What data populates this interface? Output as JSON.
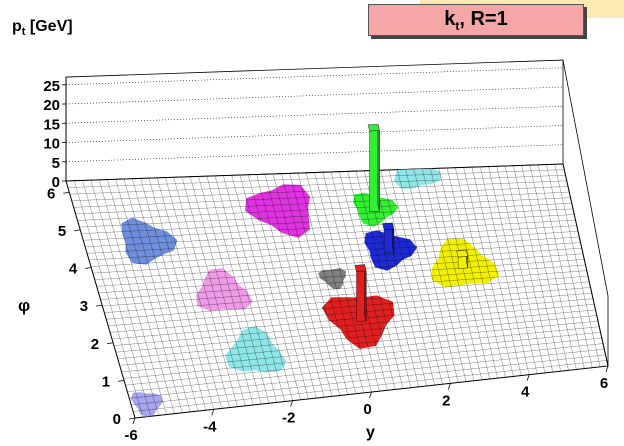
{
  "chart_data": {
    "type": "lego_3d",
    "title": "k_t, R=1",
    "title_main": "k",
    "title_sub": "t",
    "title_rest": ", R=1",
    "zlabel_main": "p",
    "zlabel_sub": "t",
    "zlabel_rest": " [GeV]",
    "xlabel": "y",
    "ylabel": "φ",
    "x_ticks": [
      "-6",
      "-4",
      "-2",
      "0",
      "2",
      "4",
      "6"
    ],
    "y_ticks": [
      "0",
      "1",
      "2",
      "3",
      "4",
      "5",
      "6"
    ],
    "z_ticks": [
      "0",
      "5",
      "10",
      "15",
      "20",
      "25"
    ],
    "xlim": [
      -6,
      6
    ],
    "ylim": [
      0,
      6.3
    ],
    "zlim": [
      0,
      27
    ],
    "grid": "on",
    "jets": [
      {
        "color": "#6f8fdc",
        "y": -4.5,
        "phi": 4.6,
        "r": 0.7,
        "pt": 0
      },
      {
        "color": "#ef9be8",
        "y": -3.0,
        "phi": 3.1,
        "r": 0.7,
        "pt": 0
      },
      {
        "color": "#8fe6e6",
        "y": -2.6,
        "phi": 1.4,
        "r": 0.75,
        "pt": 0
      },
      {
        "color": "#a7a6ec",
        "y": -5.6,
        "phi": 0.35,
        "r": 0.4,
        "pt": 0
      },
      {
        "color": "#e033e0",
        "y": -1.0,
        "phi": 5.3,
        "r": 0.85,
        "pt": 0
      },
      {
        "color": "#33ee33",
        "y": 1.2,
        "phi": 5.2,
        "r": 0.55,
        "pt": 21
      },
      {
        "color": "#1f29d0",
        "y": 1.3,
        "phi": 4.0,
        "r": 0.65,
        "pt": 6
      },
      {
        "color": "#f0f000",
        "y": 3.0,
        "phi": 3.4,
        "r": 0.85,
        "pt": 3
      },
      {
        "color": "#808080",
        "y": -0.2,
        "phi": 3.3,
        "r": 0.35,
        "pt": 0
      },
      {
        "color": "#e02020",
        "y": 0.2,
        "phi": 2.1,
        "r": 0.9,
        "pt": 13
      },
      {
        "color": "#8fe6e6",
        "y": 2.4,
        "phi": 6.2,
        "r": 0.6,
        "pt": 0
      }
    ]
  }
}
